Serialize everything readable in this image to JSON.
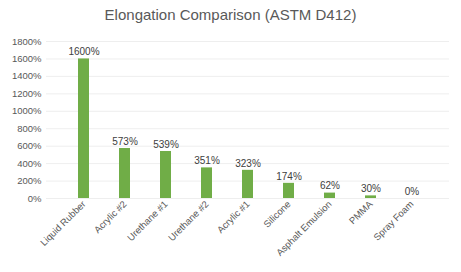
{
  "chart_data": {
    "type": "bar",
    "title": "Elongation Comparison (ASTM D412)",
    "categories": [
      "Liquid Rubber",
      "Acrylic #2",
      "Urethane #1",
      "Urethane #2",
      "Acrylic #1",
      "Silicone",
      "Asphalt Emulsion",
      "PMMA",
      "Spray Foam"
    ],
    "values": [
      1600,
      573,
      539,
      351,
      323,
      174,
      62,
      30,
      0
    ],
    "value_labels": [
      "1600%",
      "573%",
      "539%",
      "351%",
      "323%",
      "174%",
      "62%",
      "30%",
      "0%"
    ],
    "color": "#70ad47",
    "ylim": [
      0,
      1800
    ],
    "yticks": [
      {
        "value": 0,
        "label": "0%"
      },
      {
        "value": 200,
        "label": "200%"
      },
      {
        "value": 400,
        "label": "400%"
      },
      {
        "value": 600,
        "label": "600%"
      },
      {
        "value": 800,
        "label": "800%"
      },
      {
        "value": 1000,
        "label": "1000%"
      },
      {
        "value": 1200,
        "label": "1200%"
      },
      {
        "value": 1400,
        "label": "1400%"
      },
      {
        "value": 1600,
        "label": "1600%"
      },
      {
        "value": 1800,
        "label": "1800%"
      }
    ],
    "grid": true,
    "data_labels": true
  }
}
